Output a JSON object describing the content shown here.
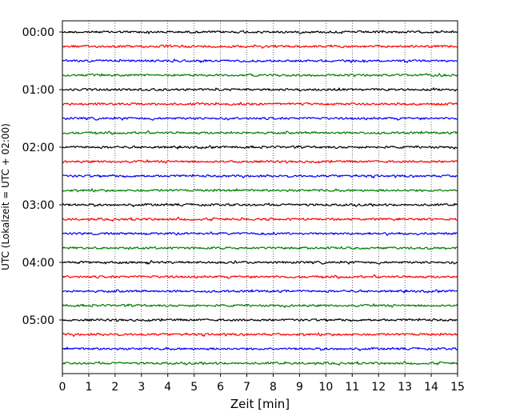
{
  "chart_data": {
    "type": "line",
    "title": "",
    "xlabel": "Zeit  [min]",
    "ylabel": "UTC (Lokalzeit = UTC + 02:00)",
    "xlim": [
      0,
      15
    ],
    "x_ticks": [
      "0",
      "1",
      "2",
      "3",
      "4",
      "5",
      "6",
      "7",
      "8",
      "9",
      "10",
      "11",
      "12",
      "13",
      "14",
      "15"
    ],
    "y_ticks": [
      "00:00",
      "01:00",
      "02:00",
      "03:00",
      "04:00",
      "05:00"
    ],
    "grid": "vertical dotted at each minute",
    "trace_interval_minutes": 15,
    "trace_start_times": [
      "00:00",
      "00:15",
      "00:30",
      "00:45",
      "01:00",
      "01:15",
      "01:30",
      "01:45",
      "02:00",
      "02:15",
      "02:30",
      "02:45",
      "03:00",
      "03:15",
      "03:30",
      "03:45",
      "04:00",
      "04:15",
      "04:30",
      "04:45",
      "05:00",
      "05:15",
      "05:30",
      "05:45"
    ],
    "trace_colors": [
      "#000000",
      "#ff0000",
      "#0000ff",
      "#007f00"
    ],
    "legend": "none"
  }
}
